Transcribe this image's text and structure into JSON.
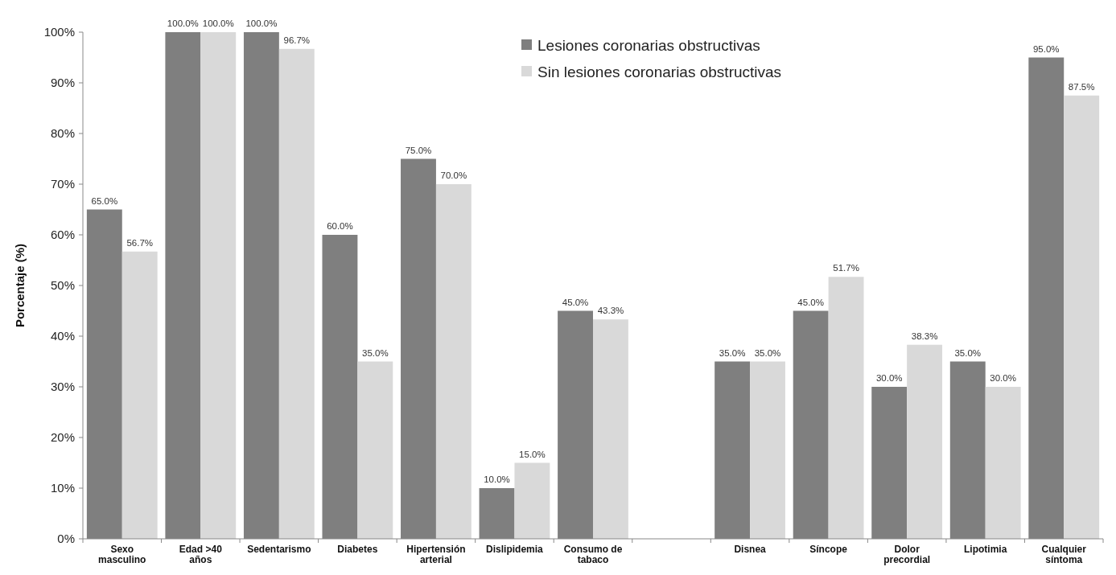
{
  "chart_data": {
    "type": "bar",
    "ylabel": "Porcentaje (%)",
    "categories": [
      "Sexo masculino",
      "Edad >40 años",
      "Sedentarismo",
      "Diabetes",
      "Hipertensión arterial",
      "Dislipidemia",
      "Consumo de tabaco",
      null,
      "Disnea",
      "Síncope",
      "Dolor precordial",
      "Lipotimia",
      "Cualquier síntoma"
    ],
    "series": [
      {
        "name": "Lesiones coronarias obstructivas",
        "color": "#7f7f7f",
        "values": [
          65,
          100,
          100,
          60,
          75,
          10,
          45,
          null,
          35,
          45,
          30,
          35,
          95
        ],
        "value_labels": [
          "65.0%",
          "100.0%",
          "100.0%",
          "60.0%",
          "75.0%",
          "10.0%",
          "45.0%",
          null,
          "35.0%",
          "45.0%",
          "30.0%",
          "35.0%",
          "95.0%"
        ]
      },
      {
        "name": "Sin lesiones coronarias obstructivas",
        "color": "#d9d9d9",
        "values": [
          56.7,
          100,
          96.7,
          35,
          70,
          15,
          43.3,
          null,
          35,
          51.7,
          38.3,
          30,
          87.5
        ],
        "value_labels": [
          "56.7%",
          "100.0%",
          "96.7%",
          "35.0%",
          "70.0%",
          "15.0%",
          "43.3%",
          null,
          "35.0%",
          "51.7%",
          "38.3%",
          "30.0%",
          "87.5%"
        ]
      }
    ],
    "ylim": [
      0,
      100
    ],
    "yticks": [
      {
        "value": 0,
        "label": "0%"
      },
      {
        "value": 10,
        "label": "10%"
      },
      {
        "value": 20,
        "label": "20%"
      },
      {
        "value": 30,
        "label": "30%"
      },
      {
        "value": 40,
        "label": "40%"
      },
      {
        "value": 50,
        "label": "50%"
      },
      {
        "value": 60,
        "label": "60%"
      },
      {
        "value": 70,
        "label": "70%"
      },
      {
        "value": 80,
        "label": "80%"
      },
      {
        "value": 90,
        "label": "90%"
      },
      {
        "value": 100,
        "label": "100%"
      }
    ],
    "grid": false,
    "legend": "top right"
  }
}
